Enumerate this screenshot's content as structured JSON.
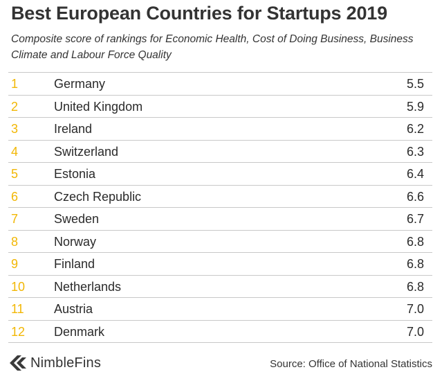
{
  "title": "Best European Countries for Startups 2019",
  "subtitle": "Composite score of rankings for Economic Health, Cost of Doing Business, Business Climate and Labour Force Quality",
  "colors": {
    "rank": "#f2b705",
    "text": "#2a2a2a",
    "divider": "#c8c8c8"
  },
  "chart_data": {
    "type": "table",
    "title": "Best European Countries for Startups 2019",
    "subtitle": "Composite score of rankings for Economic Health, Cost of Doing Business, Business Climate and Labour Force Quality",
    "rows": [
      {
        "rank": "1",
        "country": "Germany",
        "score": "5.5"
      },
      {
        "rank": "2",
        "country": "United Kingdom",
        "score": "5.9"
      },
      {
        "rank": "3",
        "country": "Ireland",
        "score": "6.2"
      },
      {
        "rank": "4",
        "country": "Switzerland",
        "score": "6.3"
      },
      {
        "rank": "5",
        "country": "Estonia",
        "score": "6.4"
      },
      {
        "rank": "6",
        "country": "Czech Republic",
        "score": "6.6"
      },
      {
        "rank": "7",
        "country": "Sweden",
        "score": "6.7"
      },
      {
        "rank": "8",
        "country": "Norway",
        "score": "6.8"
      },
      {
        "rank": "9",
        "country": "Finland",
        "score": "6.8"
      },
      {
        "rank": "10",
        "country": "Netherlands",
        "score": "6.8"
      },
      {
        "rank": "11",
        "country": "Austria",
        "score": "7.0"
      },
      {
        "rank": "12",
        "country": "Denmark",
        "score": "7.0"
      }
    ]
  },
  "footer": {
    "brand": "NimbleFins",
    "brand_icon": "nimblefins-logo-icon",
    "source": "Source: Office of National Statistics"
  }
}
